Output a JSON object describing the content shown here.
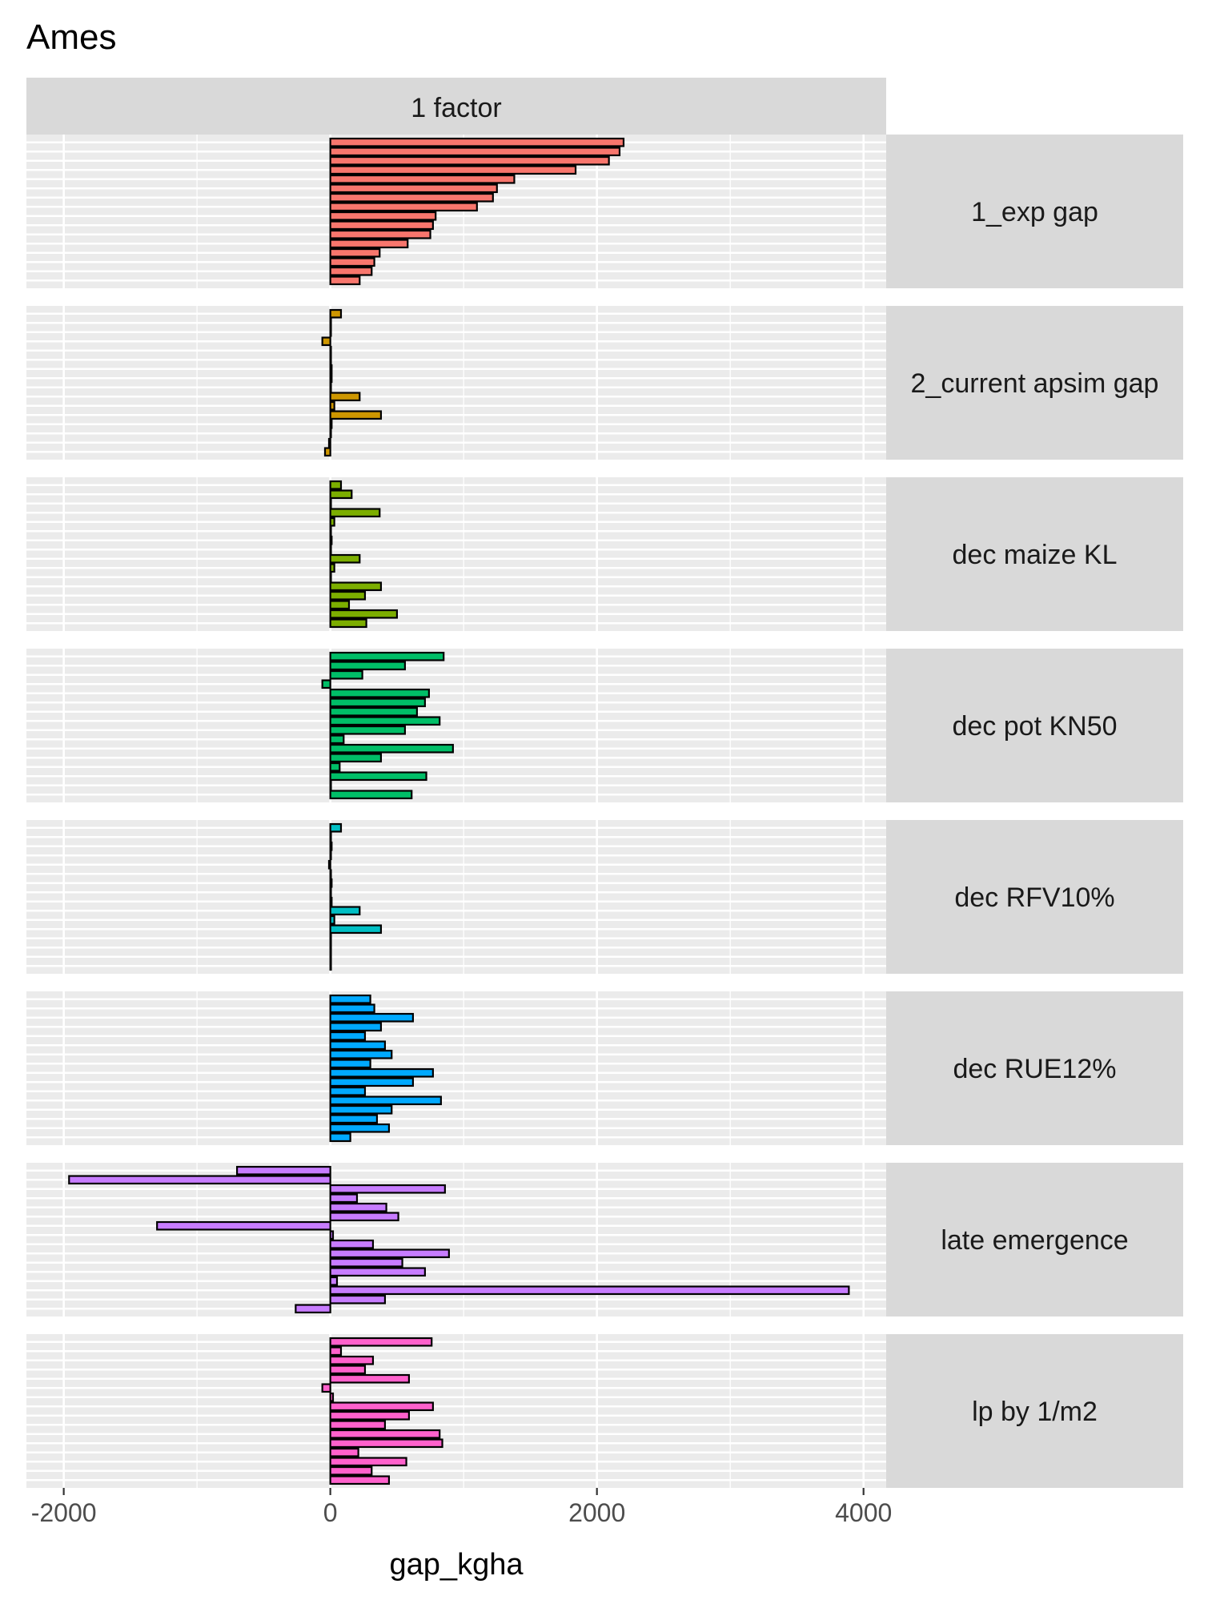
{
  "chart_data": {
    "type": "bar",
    "orientation": "horizontal",
    "title": "Ames",
    "column_strip": "1 factor",
    "xlabel": "gap_kgha",
    "ylabel": "",
    "xlim": [
      -2280,
      4170
    ],
    "x_ticks": [
      -2000,
      0,
      2000,
      4000
    ],
    "x_tick_labels": [
      "-2000",
      "0",
      "2000",
      "4000"
    ],
    "grid": true,
    "legend": "none",
    "bar_outline": "#000000",
    "rows_per_panel": 16,
    "panels": [
      {
        "name": "1_exp gap",
        "color": "#F8766D",
        "values": [
          2200,
          2170,
          2090,
          1840,
          1380,
          1250,
          1220,
          1100,
          790,
          770,
          750,
          580,
          370,
          330,
          310,
          220
        ]
      },
      {
        "name": "2_current apsim gap",
        "color": "#CD9600",
        "values": [
          80,
          0,
          0,
          -60,
          0,
          0,
          10,
          10,
          0,
          220,
          30,
          380,
          10,
          0,
          -10,
          -40
        ]
      },
      {
        "name": "dec maize KL",
        "color": "#7CAE00",
        "values": [
          80,
          160,
          0,
          370,
          30,
          0,
          10,
          0,
          220,
          30,
          0,
          380,
          260,
          140,
          500,
          270
        ]
      },
      {
        "name": "dec pot KN50",
        "color": "#00BE67",
        "values": [
          850,
          560,
          240,
          -60,
          740,
          710,
          650,
          820,
          560,
          100,
          920,
          380,
          70,
          720,
          0,
          610
        ]
      },
      {
        "name": "dec RFV10%",
        "color": "#00BFC4",
        "values": [
          80,
          0,
          10,
          0,
          -10,
          0,
          10,
          0,
          10,
          220,
          30,
          380,
          0,
          0,
          0,
          0
        ]
      },
      {
        "name": "dec RUE12%",
        "color": "#00A9FF",
        "values": [
          300,
          330,
          620,
          380,
          260,
          410,
          460,
          300,
          770,
          620,
          260,
          830,
          460,
          350,
          440,
          150
        ]
      },
      {
        "name": "late emergence",
        "color": "#C77CFF",
        "values": [
          -700,
          -1960,
          860,
          200,
          420,
          510,
          -1300,
          20,
          320,
          890,
          540,
          710,
          50,
          3890,
          410,
          -260
        ]
      },
      {
        "name": "lp by 1/m2",
        "color": "#FF61CC",
        "values": [
          760,
          80,
          320,
          260,
          590,
          -60,
          20,
          770,
          590,
          410,
          820,
          840,
          210,
          570,
          310,
          440
        ]
      }
    ]
  }
}
